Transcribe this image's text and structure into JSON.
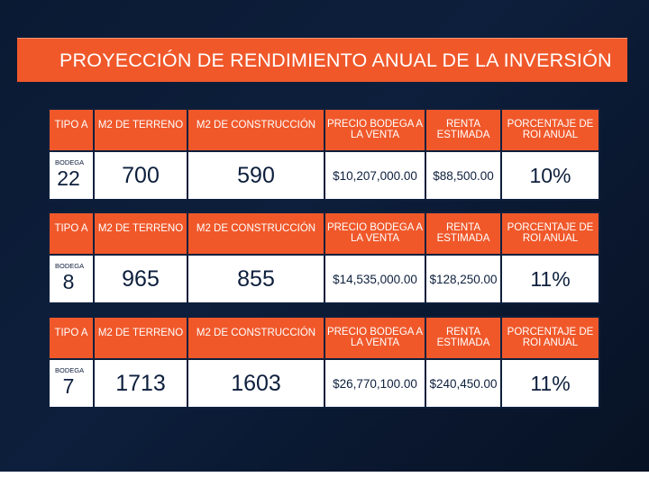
{
  "title": "PROYECCIÓN DE RENDIMIENTO ANUAL DE LA INVERSIÓN",
  "colors": {
    "accent": "#f0582a",
    "background": "#0d1f3c",
    "cell": "#ffffff"
  },
  "tables": [
    {
      "headers": [
        "TIPO A",
        "M2 DE TERRENO",
        "M2 DE CONSTRUCCIÓN",
        "PRECIO BODEGA A LA VENTA",
        "RENTA ESTIMADA",
        "PORCENTAJE DE ROI ANUAL"
      ],
      "bodega_label": "BODEGA",
      "bodega": "22",
      "terreno": "700",
      "construccion": "590",
      "precio": "$10,207,000.00",
      "renta": "$88,500.00",
      "roi": "10%"
    },
    {
      "headers": [
        "TIPO A",
        "M2 DE TERRENO",
        "M2 DE CONSTRUCCIÓN",
        "PRECIO BODEGA A LA VENTA",
        "RENTA ESTIMADA",
        "PORCENTAJE DE ROI ANUAL"
      ],
      "bodega_label": "BODEGA",
      "bodega": "8",
      "terreno": "965",
      "construccion": "855",
      "precio": "$14,535,000.00",
      "renta": "$128,250.00",
      "roi": "11%"
    },
    {
      "headers": [
        "TIPO A",
        "M2 DE TERRENO",
        "M2 DE CONSTRUCCIÓN",
        "PRECIO BODEGA A LA VENTA",
        "RENTA ESTIMADA",
        "PORCENTAJE DE ROI ANUAL"
      ],
      "bodega_label": "BODEGA",
      "bodega": "7",
      "terreno": "1713",
      "construccion": "1603",
      "precio": "$26,770,100.00",
      "renta": "$240,450.00",
      "roi": "11%"
    }
  ]
}
